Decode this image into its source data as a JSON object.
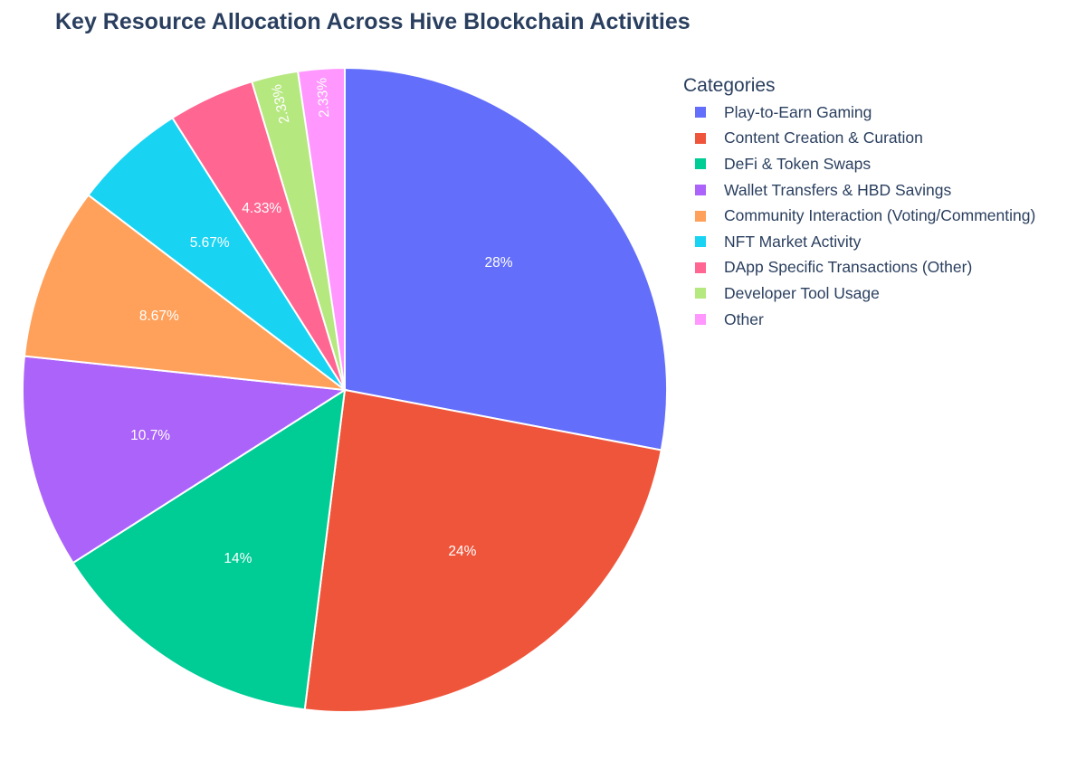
{
  "chart_data": {
    "type": "pie",
    "title": "Key Resource Allocation Across Hive Blockchain Activities",
    "legend_title": "Categories",
    "legend_position": "right",
    "slices": [
      {
        "label": "Play-to-Earn Gaming",
        "value": 28,
        "display": "28%",
        "color": "#636efa"
      },
      {
        "label": "Content Creation & Curation",
        "value": 24,
        "display": "24%",
        "color": "#ef553b"
      },
      {
        "label": "DeFi & Token Swaps",
        "value": 14,
        "display": "14%",
        "color": "#00cc96"
      },
      {
        "label": "Wallet Transfers & HBD Savings",
        "value": 10.7,
        "display": "10.7%",
        "color": "#ab63fa"
      },
      {
        "label": "Community Interaction (Voting/Commenting)",
        "value": 8.67,
        "display": "8.67%",
        "color": "#ffa15a"
      },
      {
        "label": "NFT Market Activity",
        "value": 5.67,
        "display": "5.67%",
        "color": "#19d3f3"
      },
      {
        "label": "DApp Specific Transactions (Other)",
        "value": 4.33,
        "display": "4.33%",
        "color": "#ff6692"
      },
      {
        "label": "Developer Tool Usage",
        "value": 2.33,
        "display": "2.33%",
        "color": "#b6e880"
      },
      {
        "label": "Other",
        "value": 2.33,
        "display": "2.33%",
        "color": "#ff97ff"
      }
    ]
  }
}
